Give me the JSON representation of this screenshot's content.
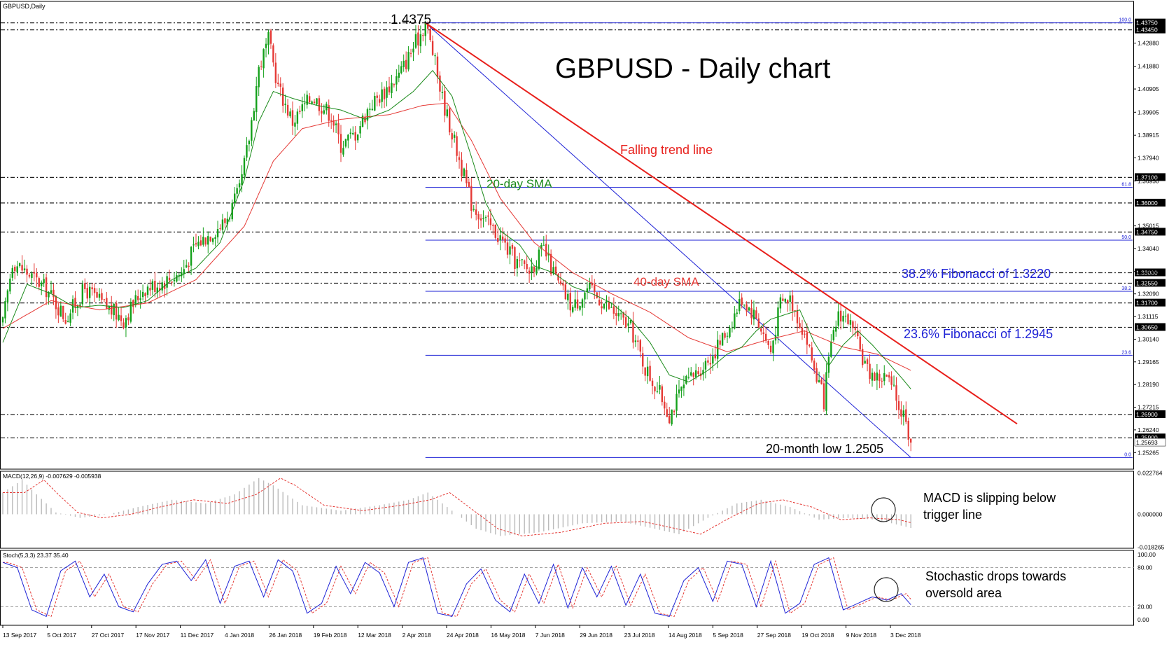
{
  "header": {
    "symbol_label": "GBPUSD,Daily"
  },
  "chart_data": {
    "type": "candlestick",
    "symbol": "GBPUSD",
    "timeframe": "Daily",
    "title": "GBPUSD - Daily chart",
    "ylim": [
      1.2455,
      1.4395
    ],
    "y_tick_labels": [
      "1.42880",
      "1.41880",
      "1.40905",
      "1.39905",
      "1.38915",
      "1.37940",
      "1.36950",
      "1.35015",
      "1.34040",
      "1.33055",
      "1.32090",
      "1.31115",
      "1.30140",
      "1.29165",
      "1.28190",
      "1.27215",
      "1.26240",
      "1.25265"
    ],
    "x_tick_labels": [
      "13 Sep 2017",
      "5 Oct 2017",
      "27 Oct 2017",
      "17 Nov 2017",
      "11 Dec 2017",
      "4 Jan 2018",
      "26 Jan 2018",
      "19 Feb 2018",
      "12 Mar 2018",
      "2 Apr 2018",
      "24 Apr 2018",
      "16 May 2018",
      "7 Jun 2018",
      "29 Jun 2018",
      "23 Jul 2018",
      "14 Aug 2018",
      "5 Sep 2018",
      "27 Sep 2018",
      "19 Oct 2018",
      "9 Nov 2018",
      "3 Dec 2018"
    ],
    "price_path": [
      [
        0,
        1.308
      ],
      [
        4,
        1.335
      ],
      [
        10,
        1.33
      ],
      [
        18,
        1.323
      ],
      [
        26,
        1.3105
      ],
      [
        34,
        1.323
      ],
      [
        42,
        1.316
      ],
      [
        50,
        1.31
      ],
      [
        58,
        1.323
      ],
      [
        66,
        1.326
      ],
      [
        74,
        1.33
      ],
      [
        80,
        1.342
      ],
      [
        86,
        1.347
      ],
      [
        92,
        1.352
      ],
      [
        98,
        1.365
      ],
      [
        102,
        1.388
      ],
      [
        106,
        1.418
      ],
      [
        110,
        1.43
      ],
      [
        114,
        1.41
      ],
      [
        120,
        1.395
      ],
      [
        128,
        1.406
      ],
      [
        136,
        1.398
      ],
      [
        140,
        1.385
      ],
      [
        146,
        1.39
      ],
      [
        152,
        1.402
      ],
      [
        158,
        1.408
      ],
      [
        164,
        1.415
      ],
      [
        168,
        1.423
      ],
      [
        172,
        1.431
      ],
      [
        175,
        1.4375
      ],
      [
        178,
        1.425
      ],
      [
        182,
        1.405
      ],
      [
        186,
        1.39
      ],
      [
        190,
        1.375
      ],
      [
        194,
        1.36
      ],
      [
        200,
        1.352
      ],
      [
        206,
        1.345
      ],
      [
        212,
        1.335
      ],
      [
        218,
        1.331
      ],
      [
        224,
        1.34
      ],
      [
        230,
        1.325
      ],
      [
        236,
        1.315
      ],
      [
        242,
        1.323
      ],
      [
        248,
        1.318
      ],
      [
        254,
        1.312
      ],
      [
        260,
        1.306
      ],
      [
        266,
        1.289
      ],
      [
        272,
        1.278
      ],
      [
        276,
        1.269
      ],
      [
        282,
        1.281
      ],
      [
        288,
        1.288
      ],
      [
        294,
        1.295
      ],
      [
        300,
        1.305
      ],
      [
        306,
        1.319
      ],
      [
        312,
        1.311
      ],
      [
        318,
        1.296
      ],
      [
        322,
        1.317
      ],
      [
        326,
        1.319
      ],
      [
        332,
        1.304
      ],
      [
        336,
        1.289
      ],
      [
        340,
        1.275
      ],
      [
        342,
        1.292
      ],
      [
        346,
        1.313
      ],
      [
        350,
        1.31
      ],
      [
        354,
        1.299
      ],
      [
        358,
        1.288
      ],
      [
        362,
        1.285
      ],
      [
        366,
        1.285
      ],
      [
        370,
        1.276
      ],
      [
        372,
        1.27
      ],
      [
        374,
        1.269
      ],
      [
        376,
        1.254
      ]
    ],
    "sma_20_anchors": [
      [
        0,
        1.3
      ],
      [
        10,
        1.325
      ],
      [
        20,
        1.321
      ],
      [
        30,
        1.315
      ],
      [
        40,
        1.316
      ],
      [
        50,
        1.315
      ],
      [
        60,
        1.318
      ],
      [
        70,
        1.327
      ],
      [
        80,
        1.332
      ],
      [
        90,
        1.343
      ],
      [
        100,
        1.37
      ],
      [
        106,
        1.395
      ],
      [
        112,
        1.408
      ],
      [
        120,
        1.405
      ],
      [
        130,
        1.402
      ],
      [
        140,
        1.4
      ],
      [
        150,
        1.396
      ],
      [
        160,
        1.4
      ],
      [
        170,
        1.408
      ],
      [
        178,
        1.417
      ],
      [
        186,
        1.406
      ],
      [
        194,
        1.38
      ],
      [
        200,
        1.36
      ],
      [
        206,
        1.348
      ],
      [
        214,
        1.342
      ],
      [
        220,
        1.333
      ],
      [
        228,
        1.33
      ],
      [
        236,
        1.324
      ],
      [
        244,
        1.321
      ],
      [
        252,
        1.317
      ],
      [
        260,
        1.31
      ],
      [
        268,
        1.3
      ],
      [
        276,
        1.286
      ],
      [
        284,
        1.283
      ],
      [
        292,
        1.288
      ],
      [
        300,
        1.295
      ],
      [
        306,
        1.298
      ],
      [
        312,
        1.305
      ],
      [
        318,
        1.31
      ],
      [
        324,
        1.312
      ],
      [
        330,
        1.314
      ],
      [
        336,
        1.3
      ],
      [
        342,
        1.29
      ],
      [
        348,
        1.299
      ],
      [
        354,
        1.305
      ],
      [
        360,
        1.299
      ],
      [
        366,
        1.292
      ],
      [
        372,
        1.285
      ],
      [
        376,
        1.28
      ]
    ],
    "sma_40_anchors": [
      [
        0,
        1.306
      ],
      [
        20,
        1.318
      ],
      [
        40,
        1.314
      ],
      [
        60,
        1.317
      ],
      [
        80,
        1.327
      ],
      [
        100,
        1.35
      ],
      [
        112,
        1.378
      ],
      [
        124,
        1.392
      ],
      [
        140,
        1.396
      ],
      [
        160,
        1.398
      ],
      [
        174,
        1.402
      ],
      [
        184,
        1.403
      ],
      [
        194,
        1.387
      ],
      [
        206,
        1.362
      ],
      [
        220,
        1.343
      ],
      [
        236,
        1.33
      ],
      [
        252,
        1.321
      ],
      [
        268,
        1.313
      ],
      [
        284,
        1.302
      ],
      [
        300,
        1.296
      ],
      [
        316,
        1.301
      ],
      [
        332,
        1.305
      ],
      [
        348,
        1.298
      ],
      [
        362,
        1.295
      ],
      [
        376,
        1.288
      ]
    ],
    "falling_trend_line": {
      "from": [
        175,
        1.4375
      ],
      "to": [
        420,
        1.265
      ]
    },
    "horizontal_levels": [
      {
        "label": "1.43750",
        "value": 1.4375
      },
      {
        "label": "1.43450",
        "value": 1.4345
      },
      {
        "label": "1.37100",
        "value": 1.371
      },
      {
        "label": "1.36000",
        "value": 1.36
      },
      {
        "label": "1.34750",
        "value": 1.3475
      },
      {
        "label": "1.33000",
        "value": 1.33
      },
      {
        "label": "1.32550",
        "value": 1.3255
      },
      {
        "label": "1.31700",
        "value": 1.317
      },
      {
        "label": "1.30650",
        "value": 1.3065
      },
      {
        "label": "1.26900",
        "value": 1.269
      },
      {
        "label": "1.25900",
        "value": 1.259
      }
    ],
    "last_price_label": "1.25693",
    "last_price_value": 1.25693,
    "fibonacci": {
      "start_bar": 175,
      "levels": [
        {
          "ratio_label": "100.0",
          "value": 1.4375
        },
        {
          "ratio_label": "61.8",
          "value": 1.3667
        },
        {
          "ratio_label": "50.0",
          "value": 1.344
        },
        {
          "ratio_label": "38.2",
          "value": 1.322
        },
        {
          "ratio_label": "23.6",
          "value": 1.2945
        },
        {
          "ratio_label": "0.0",
          "value": 1.2505
        }
      ]
    },
    "annotations": [
      {
        "text": "1.4375"
      },
      {
        "text": "Falling trend line"
      },
      {
        "text": "20-day SMA"
      },
      {
        "text": "40-day SMA"
      },
      {
        "text": "38.2% Fibonacci of 1.3220"
      },
      {
        "text": "23.6% Fibonacci of 1.2945"
      },
      {
        "text": "20-month low 1.2505"
      }
    ],
    "macd": {
      "header": "MACD(12,26,9) -0.007629 -0.005938",
      "params": [
        12,
        26,
        9
      ],
      "main": -0.007629,
      "signal": -0.005938,
      "ylim": [
        -0.0188,
        0.0238
      ],
      "y_tick_labels": [
        "0.022764",
        "0.000000",
        "-0.018265"
      ],
      "anchors": [
        [
          0,
          0.012
        ],
        [
          8,
          0.019
        ],
        [
          14,
          0.011
        ],
        [
          22,
          0.001
        ],
        [
          32,
          -0.002
        ],
        [
          44,
          0.0
        ],
        [
          56,
          0.004
        ],
        [
          70,
          0.008
        ],
        [
          84,
          0.006
        ],
        [
          96,
          0.011
        ],
        [
          106,
          0.02
        ],
        [
          112,
          0.016
        ],
        [
          124,
          0.005
        ],
        [
          140,
          0.002
        ],
        [
          156,
          0.005
        ],
        [
          168,
          0.008
        ],
        [
          176,
          0.012
        ],
        [
          186,
          0.002
        ],
        [
          196,
          -0.008
        ],
        [
          206,
          -0.012
        ],
        [
          222,
          -0.01
        ],
        [
          240,
          -0.005
        ],
        [
          256,
          -0.004
        ],
        [
          270,
          -0.008
        ],
        [
          280,
          -0.011
        ],
        [
          292,
          -0.002
        ],
        [
          304,
          0.006
        ],
        [
          314,
          0.008
        ],
        [
          326,
          0.004
        ],
        [
          338,
          -0.003
        ],
        [
          350,
          -0.002
        ],
        [
          362,
          -0.003
        ],
        [
          376,
          -0.0076
        ]
      ],
      "annotation": "MACD is slipping below\ntrigger line"
    },
    "stochastic": {
      "header": "Stoch(5,3,3) 23.37 35.40",
      "params": [
        5,
        3,
        3
      ],
      "k": 23.37,
      "d": 35.4,
      "ylim": [
        0,
        100
      ],
      "levels": [
        20,
        80
      ],
      "y_tick_labels": [
        "100.00",
        "80.00",
        "20.00",
        "0.00"
      ],
      "anchors": [
        [
          0,
          88
        ],
        [
          6,
          80
        ],
        [
          12,
          15
        ],
        [
          18,
          5
        ],
        [
          24,
          75
        ],
        [
          30,
          90
        ],
        [
          36,
          35
        ],
        [
          42,
          70
        ],
        [
          48,
          20
        ],
        [
          54,
          12
        ],
        [
          60,
          55
        ],
        [
          66,
          85
        ],
        [
          72,
          90
        ],
        [
          78,
          60
        ],
        [
          84,
          92
        ],
        [
          90,
          25
        ],
        [
          96,
          82
        ],
        [
          102,
          90
        ],
        [
          108,
          35
        ],
        [
          114,
          92
        ],
        [
          120,
          75
        ],
        [
          126,
          10
        ],
        [
          132,
          25
        ],
        [
          138,
          82
        ],
        [
          144,
          40
        ],
        [
          150,
          88
        ],
        [
          156,
          72
        ],
        [
          162,
          20
        ],
        [
          168,
          88
        ],
        [
          174,
          95
        ],
        [
          180,
          10
        ],
        [
          186,
          5
        ],
        [
          192,
          55
        ],
        [
          198,
          78
        ],
        [
          204,
          30
        ],
        [
          210,
          12
        ],
        [
          216,
          70
        ],
        [
          222,
          25
        ],
        [
          228,
          85
        ],
        [
          234,
          18
        ],
        [
          240,
          80
        ],
        [
          246,
          35
        ],
        [
          252,
          82
        ],
        [
          258,
          22
        ],
        [
          264,
          70
        ],
        [
          270,
          10
        ],
        [
          276,
          5
        ],
        [
          282,
          60
        ],
        [
          288,
          80
        ],
        [
          294,
          28
        ],
        [
          300,
          90
        ],
        [
          306,
          85
        ],
        [
          312,
          20
        ],
        [
          318,
          90
        ],
        [
          324,
          10
        ],
        [
          330,
          25
        ],
        [
          336,
          85
        ],
        [
          342,
          95
        ],
        [
          348,
          15
        ],
        [
          354,
          25
        ],
        [
          360,
          35
        ],
        [
          366,
          30
        ],
        [
          372,
          40
        ],
        [
          376,
          23
        ]
      ],
      "annotation": "Stochastic drops towards\noversold area"
    },
    "colors": {
      "bull": "#13A01A",
      "bear": "#E53935",
      "sma20": "#1A8A1A",
      "sma40": "#E53935",
      "trend_line": "#E8201C",
      "fibonacci": "#1E22D6",
      "support_lines": "#222222",
      "macd_hist": "#BBBBBB",
      "macd_signal": "#E53935",
      "stoch_k": "#1E22D6",
      "stoch_d": "#E53935"
    }
  }
}
